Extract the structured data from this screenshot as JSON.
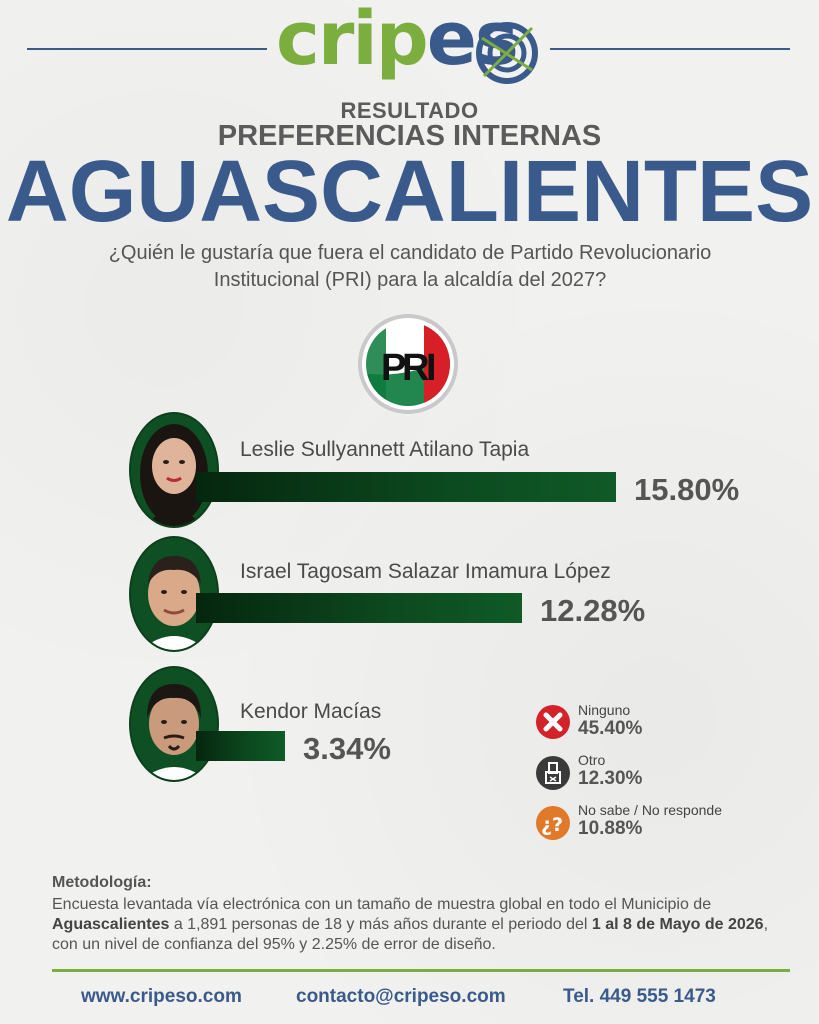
{
  "brand": {
    "logo_part1": "crip",
    "logo_part2": "es",
    "colors": {
      "green": "#7cae3f",
      "blue": "#3b5a8c",
      "bar": "#0c4a1f"
    }
  },
  "header": {
    "resultado": "RESULTADO",
    "subtitle": "PREFERENCIAS INTERNAS",
    "title": "AGUASCALIENTES",
    "question_line1": "¿Quién le gustaría que fuera el candidato de Partido Revolucionario",
    "question_line2": "Institucional (PRI) para la alcaldía del 2027?"
  },
  "party_logo": {
    "letters": [
      "P",
      "R",
      "I"
    ],
    "icon": "pri-logo-icon"
  },
  "chart_data": {
    "type": "bar",
    "orientation": "horizontal",
    "categories": [
      "Leslie Sullyannett Atilano Tapia",
      "Israel Tagosam Salazar Imamura López",
      "Kendor Macías"
    ],
    "values": [
      15.8,
      12.28,
      3.34
    ],
    "value_labels": [
      "15.80%",
      "12.28%",
      "3.34%"
    ],
    "xlim": [
      0,
      15.8
    ],
    "grid": false,
    "legend": "none"
  },
  "other_options": [
    {
      "label": "Ninguno",
      "value": "45.40%",
      "icon": "x-icon",
      "color": "#d3232a"
    },
    {
      "label": "Otro",
      "value": "12.30%",
      "icon": "ballot-box-icon",
      "color": "#3a3a3a"
    },
    {
      "label": "No sabe / No responde",
      "value": "10.88%",
      "icon": "question-icon",
      "color": "#e07a2a"
    }
  ],
  "methodology": {
    "title": "Metodología:",
    "t1": "Encuesta levantada vía electrónica con un tamaño de muestra global en todo el Municipio de ",
    "b1": "Aguascalientes",
    "t2": " a 1,891 personas de 18 y más años durante el periodo del ",
    "b2": "1 al 8 de Mayo de 2026",
    "t3": ", con un nivel de confianza del 95% y 2.25% de error de diseño."
  },
  "footer": {
    "website": "www.cripeso.com",
    "email": "contacto@cripeso.com",
    "phone": "Tel. 449 555 1473"
  }
}
